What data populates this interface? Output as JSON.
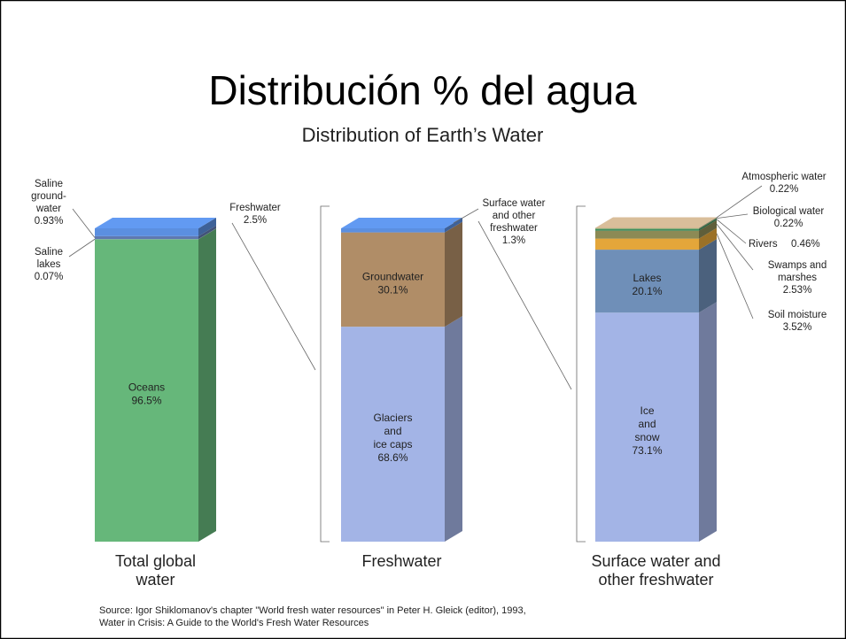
{
  "chart_data": {
    "type": "stacked_bar_3d",
    "title": "Distribución % del agua",
    "subtitle": "Distribution of Earth’s Water",
    "source": "Source: Igor Shiklomanov's chapter \"World fresh water resources\" in Peter H. Gleick (editor), 1993,\nWater in Crisis: A Guide to the World's Fresh Water Resources",
    "bars": [
      {
        "name": "Total global\nwater",
        "segments": [
          {
            "name": "Oceans",
            "value": 96.5,
            "value_label": "96.5%",
            "color": "#66b77a"
          },
          {
            "name": "Saline\nlakes",
            "value": 0.07,
            "value_label": "0.07%",
            "color": "#8aa0a8"
          },
          {
            "name": "Saline\nground-\nwater",
            "value": 0.93,
            "value_label": "0.93%",
            "color": "#5f78b0"
          },
          {
            "name": "Freshwater",
            "value": 2.5,
            "value_label": "2.5%",
            "color": "#5b8fe0"
          }
        ]
      },
      {
        "name": "Freshwater",
        "segments": [
          {
            "name": "Glaciers\nand\nice caps",
            "value": 68.6,
            "value_label": "68.6%",
            "color": "#a3b4e6"
          },
          {
            "name": "Groundwater",
            "value": 30.1,
            "value_label": "30.1%",
            "color": "#b08d67"
          },
          {
            "name": "Surface water\nand other\nfreshwater",
            "value": 1.3,
            "value_label": "1.3%",
            "color": "#5b8fe0"
          }
        ]
      },
      {
        "name": "Surface water and\nother freshwater",
        "segments": [
          {
            "name": "Ice\nand\nsnow",
            "value": 73.1,
            "value_label": "73.1%",
            "color": "#a3b4e6"
          },
          {
            "name": "Lakes",
            "value": 20.1,
            "value_label": "20.1%",
            "color": "#6f8fb8"
          },
          {
            "name": "Soil moisture",
            "value": 3.52,
            "value_label": "3.52%",
            "color": "#e4a63a"
          },
          {
            "name": "Swamps and\nmarshes",
            "value": 2.53,
            "value_label": "2.53%",
            "color": "#8c8a55"
          },
          {
            "name": "Rivers",
            "value": 0.46,
            "value_label": "0.46%",
            "color": "#3a8a5a"
          },
          {
            "name": "Biological water",
            "value": 0.22,
            "value_label": "0.22%",
            "color": "#5aa05a"
          },
          {
            "name": "Atmospheric water",
            "value": 0.22,
            "value_label": "0.22%",
            "color": "#c9b08f"
          }
        ]
      }
    ]
  }
}
